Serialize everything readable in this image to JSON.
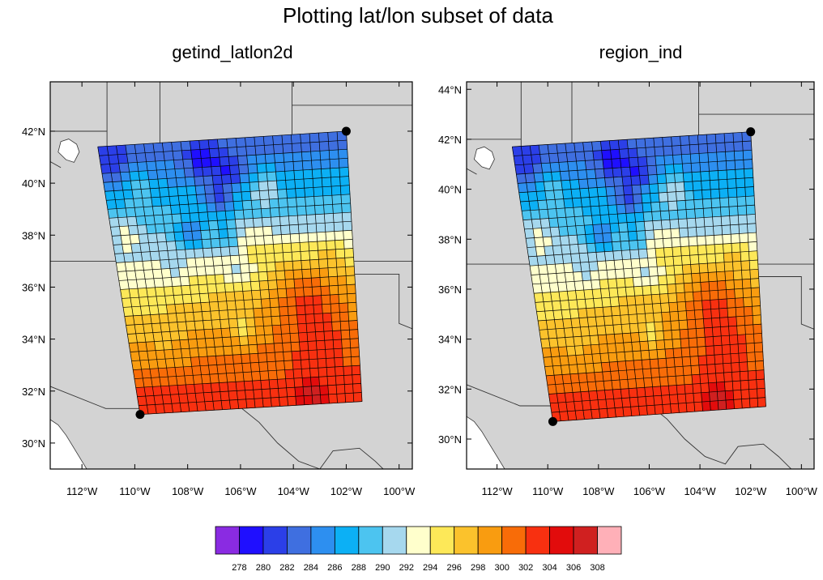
{
  "title": "Plotting lat/lon subset of data",
  "panels": [
    {
      "title": "getind_latlon2d",
      "lat_ticks": [
        "30°N",
        "32°N",
        "34°N",
        "36°N",
        "38°N",
        "40°N",
        "42°N"
      ],
      "lon_ticks": [
        "112°W",
        "110°W",
        "108°W",
        "106°W",
        "104°W",
        "102°W",
        "100°W"
      ],
      "lat_range": [
        29.0,
        43.9
      ],
      "lon_range": [
        -113.2,
        -99.5
      ],
      "corner_points": [
        {
          "lat": 31.1,
          "lon": -109.8
        },
        {
          "lat": 42.0,
          "lon": -102.0
        }
      ]
    },
    {
      "title": "region_ind",
      "lat_ticks": [
        "30°N",
        "32°N",
        "34°N",
        "36°N",
        "38°N",
        "40°N",
        "42°N",
        "44°N"
      ],
      "lon_ticks": [
        "112°W",
        "110°W",
        "108°W",
        "106°W",
        "104°W",
        "102°W",
        "100°W"
      ],
      "lat_range": [
        28.8,
        44.3
      ],
      "lon_range": [
        -113.2,
        -99.5
      ],
      "corner_points": [
        {
          "lat": 30.7,
          "lon": -109.8
        },
        {
          "lat": 42.3,
          "lon": -102.0
        }
      ]
    }
  ],
  "colorbar": {
    "labels": [
      "278",
      "280",
      "282",
      "284",
      "286",
      "288",
      "290",
      "292",
      "294",
      "296",
      "298",
      "300",
      "302",
      "304",
      "306",
      "308"
    ],
    "colors": [
      "#8a2be2",
      "#1f0fff",
      "#2b3fe8",
      "#3f6fe0",
      "#2d8ff0",
      "#0cb0f5",
      "#4cc4f0",
      "#a6d8ee",
      "#ffffcc",
      "#fde858",
      "#fbc22c",
      "#f99c10",
      "#f86c08",
      "#f83010",
      "#e20c0c",
      "#d02020",
      "#ffb0b8"
    ]
  },
  "colors": {
    "land": "#d3d3d3",
    "border": "#333333"
  }
}
